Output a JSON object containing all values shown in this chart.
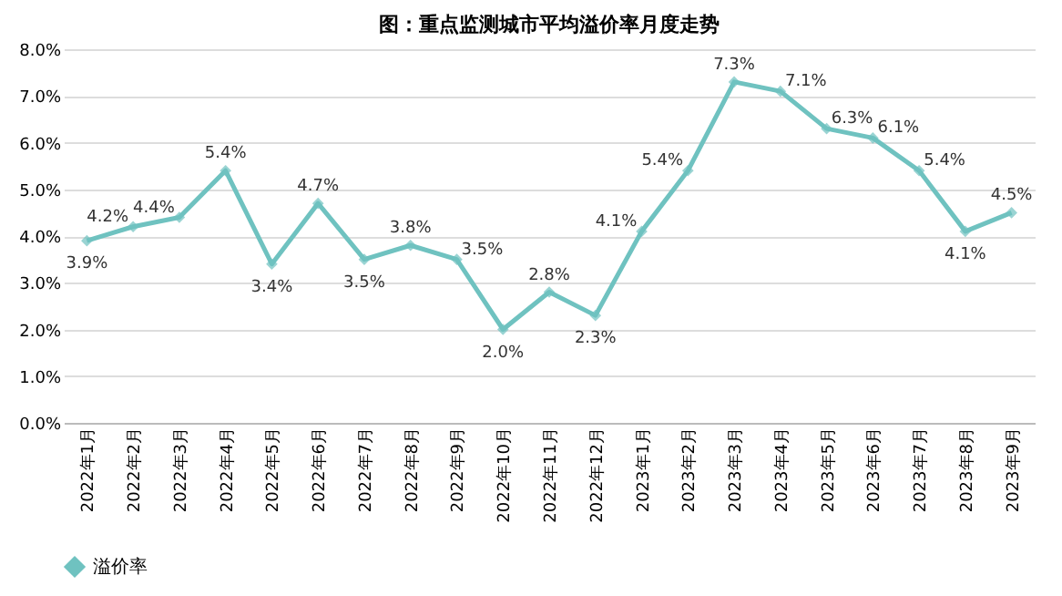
{
  "chart_data": {
    "type": "line",
    "title": "图：重点监测城市平均溢价率月度走势",
    "categories": [
      "2022年1月",
      "2022年2月",
      "2022年3月",
      "2022年4月",
      "2022年5月",
      "2022年6月",
      "2022年7月",
      "2022年8月",
      "2022年9月",
      "2022年10月",
      "2022年11月",
      "2022年12月",
      "2023年1月",
      "2023年2月",
      "2023年3月",
      "2023年4月",
      "2023年5月",
      "2023年6月",
      "2023年7月",
      "2023年8月",
      "2023年9月"
    ],
    "series": [
      {
        "name": "溢价率",
        "color": "#6fc2c0",
        "values": [
          3.9,
          4.2,
          4.4,
          5.4,
          3.4,
          4.7,
          3.5,
          3.8,
          3.5,
          2.0,
          2.8,
          2.3,
          4.1,
          5.4,
          7.3,
          7.1,
          6.3,
          6.1,
          5.4,
          4.1,
          4.5
        ],
        "value_labels": [
          "3.9%",
          "4.2%",
          "4.4%",
          "5.4%",
          "3.4%",
          "4.7%",
          "3.5%",
          "3.8%",
          "3.5%",
          "2.0%",
          "2.8%",
          "2.3%",
          "4.1%",
          "5.4%",
          "7.3%",
          "7.1%",
          "6.3%",
          "6.1%",
          "5.4%",
          "4.1%",
          "4.5%"
        ]
      }
    ],
    "ylim": [
      0,
      8
    ],
    "yticks": [
      {
        "value": 0,
        "label": "0.0%"
      },
      {
        "value": 1,
        "label": "1.0%"
      },
      {
        "value": 2,
        "label": "2.0%"
      },
      {
        "value": 3,
        "label": "3.0%"
      },
      {
        "value": 4,
        "label": "4.0%"
      },
      {
        "value": 5,
        "label": "5.0%"
      },
      {
        "value": 6,
        "label": "6.0%"
      },
      {
        "value": 7,
        "label": "7.0%"
      },
      {
        "value": 8,
        "label": "8.0%"
      }
    ],
    "grid": "y",
    "legend": "bottom",
    "marker": "diamond",
    "line_style": "solid"
  }
}
